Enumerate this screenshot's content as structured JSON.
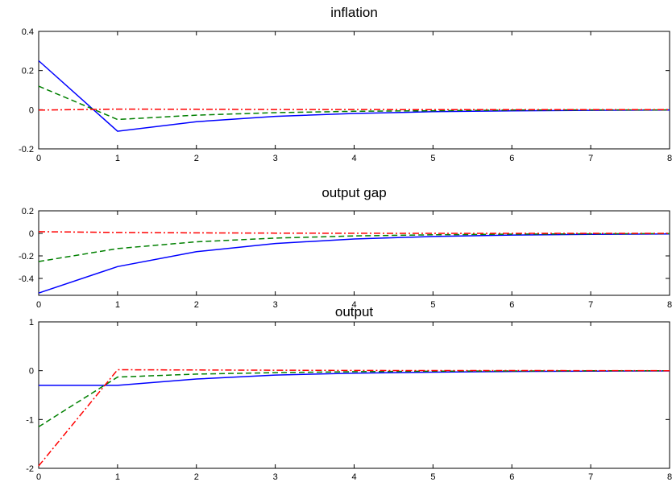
{
  "chart_data": [
    {
      "type": "line",
      "title": "inflation",
      "xlabel": "",
      "ylabel": "",
      "xlim": [
        0,
        8
      ],
      "ylim": [
        -0.2,
        0.4
      ],
      "x_ticks": [
        "0",
        "1",
        "2",
        "3",
        "4",
        "5",
        "6",
        "7",
        "8"
      ],
      "y_ticks": [
        "-0.2",
        "0",
        "0.2",
        "0.4"
      ],
      "grid": false,
      "x": [
        0,
        1,
        2,
        3,
        4,
        5,
        6,
        7,
        8
      ],
      "series": [
        {
          "color": "#0000ff",
          "dash": "solid",
          "values": [
            0.25,
            -0.11,
            -0.061,
            -0.034,
            -0.019,
            -0.01,
            -0.006,
            -0.003,
            -0.002
          ]
        },
        {
          "color": "#008000",
          "dash": "dashed",
          "values": [
            0.12,
            -0.05,
            -0.028,
            -0.015,
            -0.008,
            -0.005,
            -0.002,
            -0.001,
            -0.001
          ]
        },
        {
          "color": "#ff0000",
          "dash": "dashdot",
          "values": [
            -0.002,
            0.003,
            0.002,
            0.001,
            0.001,
            0.0,
            0.0,
            0.0,
            0.0
          ]
        }
      ]
    },
    {
      "type": "line",
      "title": "output gap",
      "xlabel": "",
      "ylabel": "",
      "xlim": [
        0,
        8
      ],
      "ylim": [
        -0.55,
        0.2
      ],
      "x_ticks": [
        "0",
        "1",
        "2",
        "3",
        "4",
        "5",
        "6",
        "7",
        "8"
      ],
      "y_ticks": [
        "-0.4",
        "-0.2",
        "0",
        "0.2"
      ],
      "grid": false,
      "x": [
        0,
        1,
        2,
        3,
        4,
        5,
        6,
        7,
        8
      ],
      "series": [
        {
          "color": "#0000ff",
          "dash": "solid",
          "values": [
            -0.53,
            -0.295,
            -0.163,
            -0.09,
            -0.05,
            -0.028,
            -0.015,
            -0.009,
            -0.005
          ]
        },
        {
          "color": "#008000",
          "dash": "dashed",
          "values": [
            -0.25,
            -0.135,
            -0.075,
            -0.042,
            -0.023,
            -0.013,
            -0.007,
            -0.004,
            -0.002
          ]
        },
        {
          "color": "#ff0000",
          "dash": "dashdot",
          "values": [
            0.015,
            0.008,
            0.004,
            0.002,
            0.001,
            0.0,
            0.0,
            0.0,
            0.0
          ]
        }
      ]
    },
    {
      "type": "line",
      "title": "output",
      "xlabel": "",
      "ylabel": "",
      "xlim": [
        0,
        8
      ],
      "ylim": [
        -2,
        1
      ],
      "x_ticks": [
        "0",
        "1",
        "2",
        "3",
        "4",
        "5",
        "6",
        "7",
        "8"
      ],
      "y_ticks": [
        "-2",
        "-1",
        "0",
        "1"
      ],
      "grid": false,
      "x": [
        0,
        1,
        2,
        3,
        4,
        5,
        6,
        7,
        8
      ],
      "series": [
        {
          "color": "#0000ff",
          "dash": "solid",
          "values": [
            -0.3,
            -0.3,
            -0.17,
            -0.09,
            -0.05,
            -0.03,
            -0.015,
            -0.008,
            -0.005
          ]
        },
        {
          "color": "#008000",
          "dash": "dashed",
          "values": [
            -1.15,
            -0.13,
            -0.07,
            -0.04,
            -0.02,
            -0.01,
            -0.006,
            -0.003,
            -0.002
          ]
        },
        {
          "color": "#ff0000",
          "dash": "dashdot",
          "values": [
            -1.95,
            0.02,
            0.015,
            0.01,
            0.005,
            0.003,
            0.002,
            0.001,
            0.0
          ]
        }
      ]
    }
  ]
}
